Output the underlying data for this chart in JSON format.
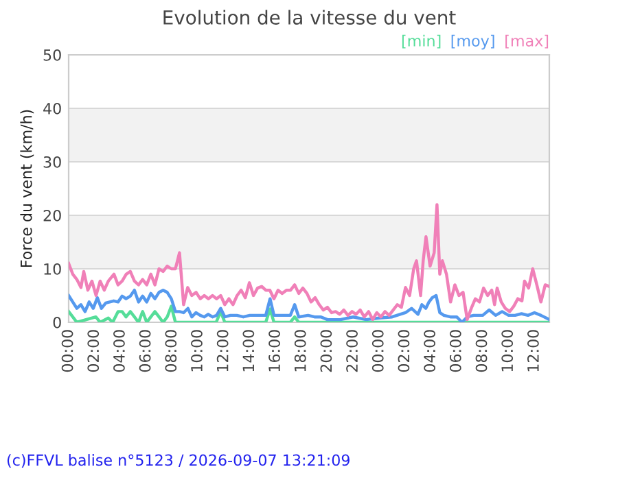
{
  "chart_data": {
    "type": "line",
    "title": "Evolution de la vitesse du vent",
    "ylabel": "Force du vent (km/h)",
    "annotations": [
      "(c)FFVL balise n°5123 / 2026-09-07 13:21:09"
    ],
    "xlim": [
      "2026-09-06T00:00",
      "2026-09-07T13:09"
    ],
    "ylim": [
      0,
      50
    ],
    "yticks": [
      0,
      10,
      20,
      30,
      40,
      50
    ],
    "xticks": [
      {
        "value": "2026-09-06T00:00",
        "label": "00:00"
      },
      {
        "value": "2026-09-06T02:00",
        "label": "02:00"
      },
      {
        "value": "2026-09-06T04:00",
        "label": "04:00"
      },
      {
        "value": "2026-09-06T06:00",
        "label": "06:00"
      },
      {
        "value": "2026-09-06T08:00",
        "label": "08:00"
      },
      {
        "value": "2026-09-06T10:00",
        "label": "10:00"
      },
      {
        "value": "2026-09-06T12:00",
        "label": "12:00"
      },
      {
        "value": "2026-09-06T14:00",
        "label": "14:00"
      },
      {
        "value": "2026-09-06T16:00",
        "label": "16:00"
      },
      {
        "value": "2026-09-06T18:00",
        "label": "18:00"
      },
      {
        "value": "2026-09-06T20:00",
        "label": "20:00"
      },
      {
        "value": "2026-09-06T22:00",
        "label": "22:00"
      },
      {
        "value": "2026-09-07T00:00",
        "label": "00:00"
      },
      {
        "value": "2026-09-07T02:00",
        "label": "02:00"
      },
      {
        "value": "2026-09-07T04:00",
        "label": "04:00"
      },
      {
        "value": "2026-09-07T06:00",
        "label": "06:00"
      },
      {
        "value": "2026-09-07T08:00",
        "label": "08:00"
      },
      {
        "value": "2026-09-07T10:00",
        "label": "10:00"
      },
      {
        "value": "2026-09-07T12:00",
        "label": "12:00"
      }
    ],
    "bands": [
      {
        "axis": "y",
        "from": 10,
        "to": 20,
        "color": "#f2f2f2"
      },
      {
        "axis": "y",
        "from": 30,
        "to": 40,
        "color": "#f2f2f2"
      }
    ],
    "grid": "y",
    "legend": "top right",
    "marker": "none",
    "line_style": "solid",
    "series": [
      {
        "name": "[min]",
        "color": "#55dd99",
        "x": [
          "2026-09-06T00:00",
          "2026-09-06T00:19",
          "2026-09-06T00:38",
          "2026-09-06T02:06",
          "2026-09-06T02:26",
          "2026-09-06T03:04",
          "2026-09-06T03:24",
          "2026-09-06T03:49",
          "2026-09-06T04:08",
          "2026-09-06T04:26",
          "2026-09-06T04:46",
          "2026-09-06T05:05",
          "2026-09-06T05:24",
          "2026-09-06T05:43",
          "2026-09-06T06:02",
          "2026-09-06T06:21",
          "2026-09-06T06:40",
          "2026-09-06T06:59",
          "2026-09-06T07:18",
          "2026-09-06T07:37",
          "2026-09-06T07:56",
          "2026-09-06T08:15",
          "2026-09-06T11:24",
          "2026-09-06T11:45",
          "2026-09-06T12:04",
          "2026-09-06T15:14",
          "2026-09-06T15:34",
          "2026-09-06T15:52",
          "2026-09-06T17:08",
          "2026-09-06T17:28",
          "2026-09-06T17:47",
          "2026-09-07T13:09"
        ],
        "values": [
          2,
          1,
          0,
          1,
          0,
          0.8,
          0,
          2,
          2,
          1,
          2,
          1,
          0,
          2,
          0,
          1,
          2,
          1,
          0,
          1,
          3,
          0,
          0,
          2,
          0,
          0,
          2.5,
          0,
          0,
          1,
          0,
          0
        ]
      },
      {
        "name": "[moy]",
        "color": "#5599ee",
        "x": [
          "2026-09-06T00:00",
          "2026-09-06T00:19",
          "2026-09-06T00:38",
          "2026-09-06T00:57",
          "2026-09-06T01:16",
          "2026-09-06T01:35",
          "2026-09-06T01:54",
          "2026-09-06T02:13",
          "2026-09-06T02:32",
          "2026-09-06T02:52",
          "2026-09-06T03:10",
          "2026-09-06T03:29",
          "2026-09-06T03:49",
          "2026-09-06T04:08",
          "2026-09-06T04:26",
          "2026-09-06T04:46",
          "2026-09-06T05:05",
          "2026-09-06T05:24",
          "2026-09-06T05:43",
          "2026-09-06T06:02",
          "2026-09-06T06:21",
          "2026-09-06T06:40",
          "2026-09-06T06:59",
          "2026-09-06T07:18",
          "2026-09-06T07:37",
          "2026-09-06T07:56",
          "2026-09-06T08:15",
          "2026-09-06T08:34",
          "2026-09-06T08:53",
          "2026-09-06T09:13",
          "2026-09-06T09:31",
          "2026-09-06T09:50",
          "2026-09-06T10:10",
          "2026-09-06T10:29",
          "2026-09-06T10:47",
          "2026-09-06T11:07",
          "2026-09-06T11:26",
          "2026-09-06T11:45",
          "2026-09-06T12:04",
          "2026-09-06T12:30",
          "2026-09-06T13:00",
          "2026-09-06T13:30",
          "2026-09-06T14:00",
          "2026-09-06T14:30",
          "2026-09-06T15:14",
          "2026-09-06T15:34",
          "2026-09-06T15:52",
          "2026-09-06T16:30",
          "2026-09-06T17:08",
          "2026-09-06T17:28",
          "2026-09-06T17:47",
          "2026-09-06T18:30",
          "2026-09-06T19:00",
          "2026-09-06T19:30",
          "2026-09-06T20:00",
          "2026-09-06T21:00",
          "2026-09-06T22:00",
          "2026-09-06T23:00",
          "2026-09-07T00:00",
          "2026-09-07T01:00",
          "2026-09-07T02:02",
          "2026-09-07T02:30",
          "2026-09-07T03:00",
          "2026-09-07T03:18",
          "2026-09-07T03:36",
          "2026-09-07T03:51",
          "2026-09-07T04:06",
          "2026-09-07T04:24",
          "2026-09-07T04:41",
          "2026-09-07T05:00",
          "2026-09-07T05:30",
          "2026-09-07T06:00",
          "2026-09-07T06:24",
          "2026-09-07T06:48",
          "2026-09-07T07:18",
          "2026-09-07T08:00",
          "2026-09-07T08:30",
          "2026-09-07T09:00",
          "2026-09-07T09:30",
          "2026-09-07T10:00",
          "2026-09-07T10:30",
          "2026-09-07T11:00",
          "2026-09-07T11:30",
          "2026-09-07T12:00",
          "2026-09-07T12:30",
          "2026-09-07T13:09"
        ],
        "values": [
          5,
          3.8,
          2.6,
          3.3,
          2,
          3.8,
          2.6,
          4.6,
          2.6,
          3.6,
          3.8,
          4,
          3.8,
          4.9,
          4.4,
          4.9,
          6,
          3.8,
          4.9,
          3.8,
          5.4,
          4.4,
          5.6,
          6,
          5.6,
          4.4,
          2,
          2,
          1.8,
          2.6,
          1,
          1.8,
          1.3,
          1,
          1.5,
          1,
          1.3,
          2.6,
          1,
          1.3,
          1.3,
          1,
          1.3,
          1.3,
          1.3,
          4.4,
          1.3,
          1.3,
          1.3,
          3.3,
          1,
          1.3,
          1,
          1,
          0.5,
          0.5,
          1,
          0.5,
          0.8,
          1,
          1.8,
          2.6,
          1.5,
          3.3,
          2.6,
          3.8,
          4.6,
          5,
          1.8,
          1.3,
          1,
          1,
          0,
          1,
          1.3,
          1.3,
          2.3,
          1.3,
          2,
          1.3,
          1.3,
          1.6,
          1.3,
          1.8,
          1.3,
          0.5
        ]
      },
      {
        "name": "[max]",
        "color": "#f080b8",
        "x": [
          "2026-09-06T00:00",
          "2026-09-06T00:19",
          "2026-09-06T00:38",
          "2026-09-06T00:57",
          "2026-09-06T01:10",
          "2026-09-06T01:29",
          "2026-09-06T01:48",
          "2026-09-06T02:07",
          "2026-09-06T02:26",
          "2026-09-06T02:45",
          "2026-09-06T03:04",
          "2026-09-06T03:30",
          "2026-09-06T03:49",
          "2026-09-06T04:08",
          "2026-09-06T04:27",
          "2026-09-06T04:46",
          "2026-09-06T05:05",
          "2026-09-06T05:24",
          "2026-09-06T05:43",
          "2026-09-06T06:02",
          "2026-09-06T06:21",
          "2026-09-06T06:40",
          "2026-09-06T06:59",
          "2026-09-06T07:18",
          "2026-09-06T07:37",
          "2026-09-06T07:56",
          "2026-09-06T08:15",
          "2026-09-06T08:34",
          "2026-09-06T08:53",
          "2026-09-06T09:12",
          "2026-09-06T09:31",
          "2026-09-06T09:51",
          "2026-09-06T10:10",
          "2026-09-06T10:29",
          "2026-09-06T10:48",
          "2026-09-06T11:07",
          "2026-09-06T11:26",
          "2026-09-06T11:45",
          "2026-09-06T12:04",
          "2026-09-06T12:23",
          "2026-09-06T12:42",
          "2026-09-06T13:01",
          "2026-09-06T13:20",
          "2026-09-06T13:39",
          "2026-09-06T13:58",
          "2026-09-06T14:17",
          "2026-09-06T14:36",
          "2026-09-06T14:55",
          "2026-09-06T15:14",
          "2026-09-06T15:33",
          "2026-09-06T15:52",
          "2026-09-06T16:11",
          "2026-09-06T16:30",
          "2026-09-06T16:50",
          "2026-09-06T17:09",
          "2026-09-06T17:28",
          "2026-09-06T17:47",
          "2026-09-06T18:06",
          "2026-09-06T18:25",
          "2026-09-06T18:44",
          "2026-09-06T19:03",
          "2026-09-06T19:22",
          "2026-09-06T19:41",
          "2026-09-06T20:00",
          "2026-09-06T20:19",
          "2026-09-06T20:38",
          "2026-09-06T20:57",
          "2026-09-06T21:16",
          "2026-09-06T21:35",
          "2026-09-06T21:54",
          "2026-09-06T22:13",
          "2026-09-06T22:32",
          "2026-09-06T22:51",
          "2026-09-06T23:11",
          "2026-09-06T23:30",
          "2026-09-06T23:49",
          "2026-09-07T00:08",
          "2026-09-07T00:27",
          "2026-09-07T00:46",
          "2026-09-07T01:05",
          "2026-09-07T01:24",
          "2026-09-07T01:43",
          "2026-09-07T02:02",
          "2026-09-07T02:21",
          "2026-09-07T02:40",
          "2026-09-07T02:53",
          "2026-09-07T03:12",
          "2026-09-07T03:24",
          "2026-09-07T03:37",
          "2026-09-07T03:56",
          "2026-09-07T04:15",
          "2026-09-07T04:28",
          "2026-09-07T04:41",
          "2026-09-07T04:53",
          "2026-09-07T05:12",
          "2026-09-07T05:31",
          "2026-09-07T05:51",
          "2026-09-07T06:10",
          "2026-09-07T06:29",
          "2026-09-07T06:48",
          "2026-09-07T07:07",
          "2026-09-07T07:26",
          "2026-09-07T07:45",
          "2026-09-07T08:04",
          "2026-09-07T08:23",
          "2026-09-07T08:42",
          "2026-09-07T08:55",
          "2026-09-07T09:07",
          "2026-09-07T09:26",
          "2026-09-07T09:45",
          "2026-09-07T10:05",
          "2026-09-07T10:24",
          "2026-09-07T10:43",
          "2026-09-07T11:02",
          "2026-09-07T11:14",
          "2026-09-07T11:33",
          "2026-09-07T11:52",
          "2026-09-07T12:11",
          "2026-09-07T12:30",
          "2026-09-07T12:50",
          "2026-09-07T13:09"
        ],
        "values": [
          11,
          9,
          8,
          6.5,
          9.5,
          6,
          7.7,
          5,
          7.7,
          6,
          7.7,
          9,
          7,
          7.7,
          9,
          9.5,
          7.7,
          7,
          8,
          7,
          9,
          7,
          10,
          9.5,
          10.5,
          10,
          10,
          13,
          3.3,
          6.5,
          5,
          5.6,
          4.4,
          5,
          4.4,
          5,
          4.4,
          5,
          3.3,
          4.4,
          3.3,
          5,
          6,
          4.6,
          7.4,
          5,
          6.4,
          6.7,
          6,
          6,
          4.4,
          6,
          5.4,
          6,
          6,
          7,
          5.4,
          6.4,
          5.4,
          3.8,
          4.6,
          3.3,
          2.3,
          2.8,
          1.8,
          2,
          1.5,
          2.3,
          1.3,
          2,
          1.5,
          2.3,
          1,
          2,
          0.5,
          1.8,
          1,
          2,
          1.3,
          2.3,
          3.3,
          2.8,
          6.5,
          5,
          10,
          11.5,
          5,
          11.5,
          16,
          10.5,
          13,
          22,
          9,
          11.5,
          9,
          3.8,
          7,
          5,
          5.6,
          0.5,
          2.6,
          4.4,
          3.8,
          6.4,
          5,
          6,
          3.3,
          6.4,
          3.8,
          2.6,
          2,
          3,
          4.4,
          4,
          7.7,
          6.4,
          10,
          7,
          3.8,
          7,
          6.7
        ]
      }
    ]
  }
}
